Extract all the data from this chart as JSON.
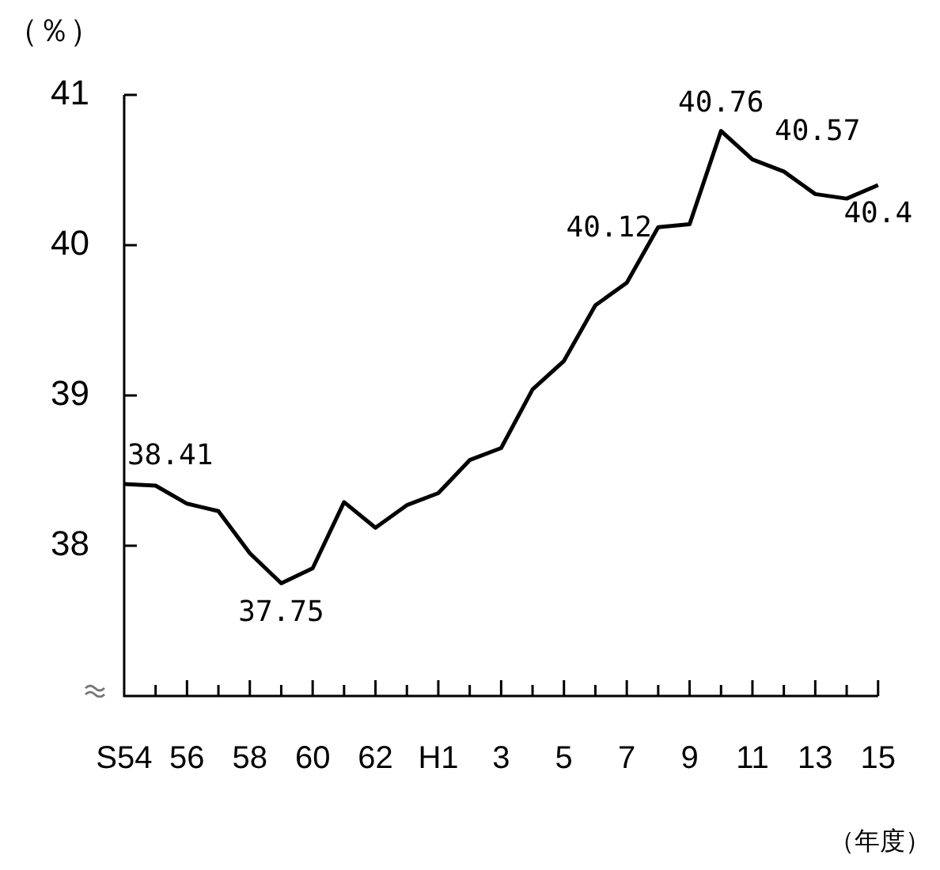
{
  "chart_data": {
    "type": "line",
    "xlabel": "（年度）",
    "ylabel": "（％）",
    "categories": [
      "S54",
      null,
      "56",
      null,
      "58",
      null,
      "60",
      null,
      "62",
      null,
      "H1",
      null,
      "3",
      null,
      "5",
      null,
      "7",
      null,
      "9",
      null,
      "11",
      null,
      "13",
      null,
      "15"
    ],
    "values": [
      38.41,
      38.4,
      38.28,
      38.23,
      37.95,
      37.75,
      37.85,
      38.29,
      38.12,
      38.27,
      38.35,
      38.57,
      38.65,
      39.04,
      39.23,
      39.6,
      39.75,
      40.12,
      40.14,
      40.76,
      40.57,
      40.49,
      40.34,
      40.31,
      40.4
    ],
    "value_labels": [
      "38.41",
      null,
      null,
      null,
      null,
      "37.75",
      null,
      null,
      null,
      null,
      null,
      null,
      null,
      null,
      null,
      null,
      null,
      "40.12",
      null,
      "40.76",
      "40.57",
      null,
      null,
      null,
      "40.4"
    ],
    "color": "#000000",
    "ylim": [
      37,
      41
    ],
    "yticks": [
      38,
      39,
      40,
      41
    ],
    "grid": false,
    "legend": false,
    "marker": "none",
    "line_style": "solid"
  }
}
